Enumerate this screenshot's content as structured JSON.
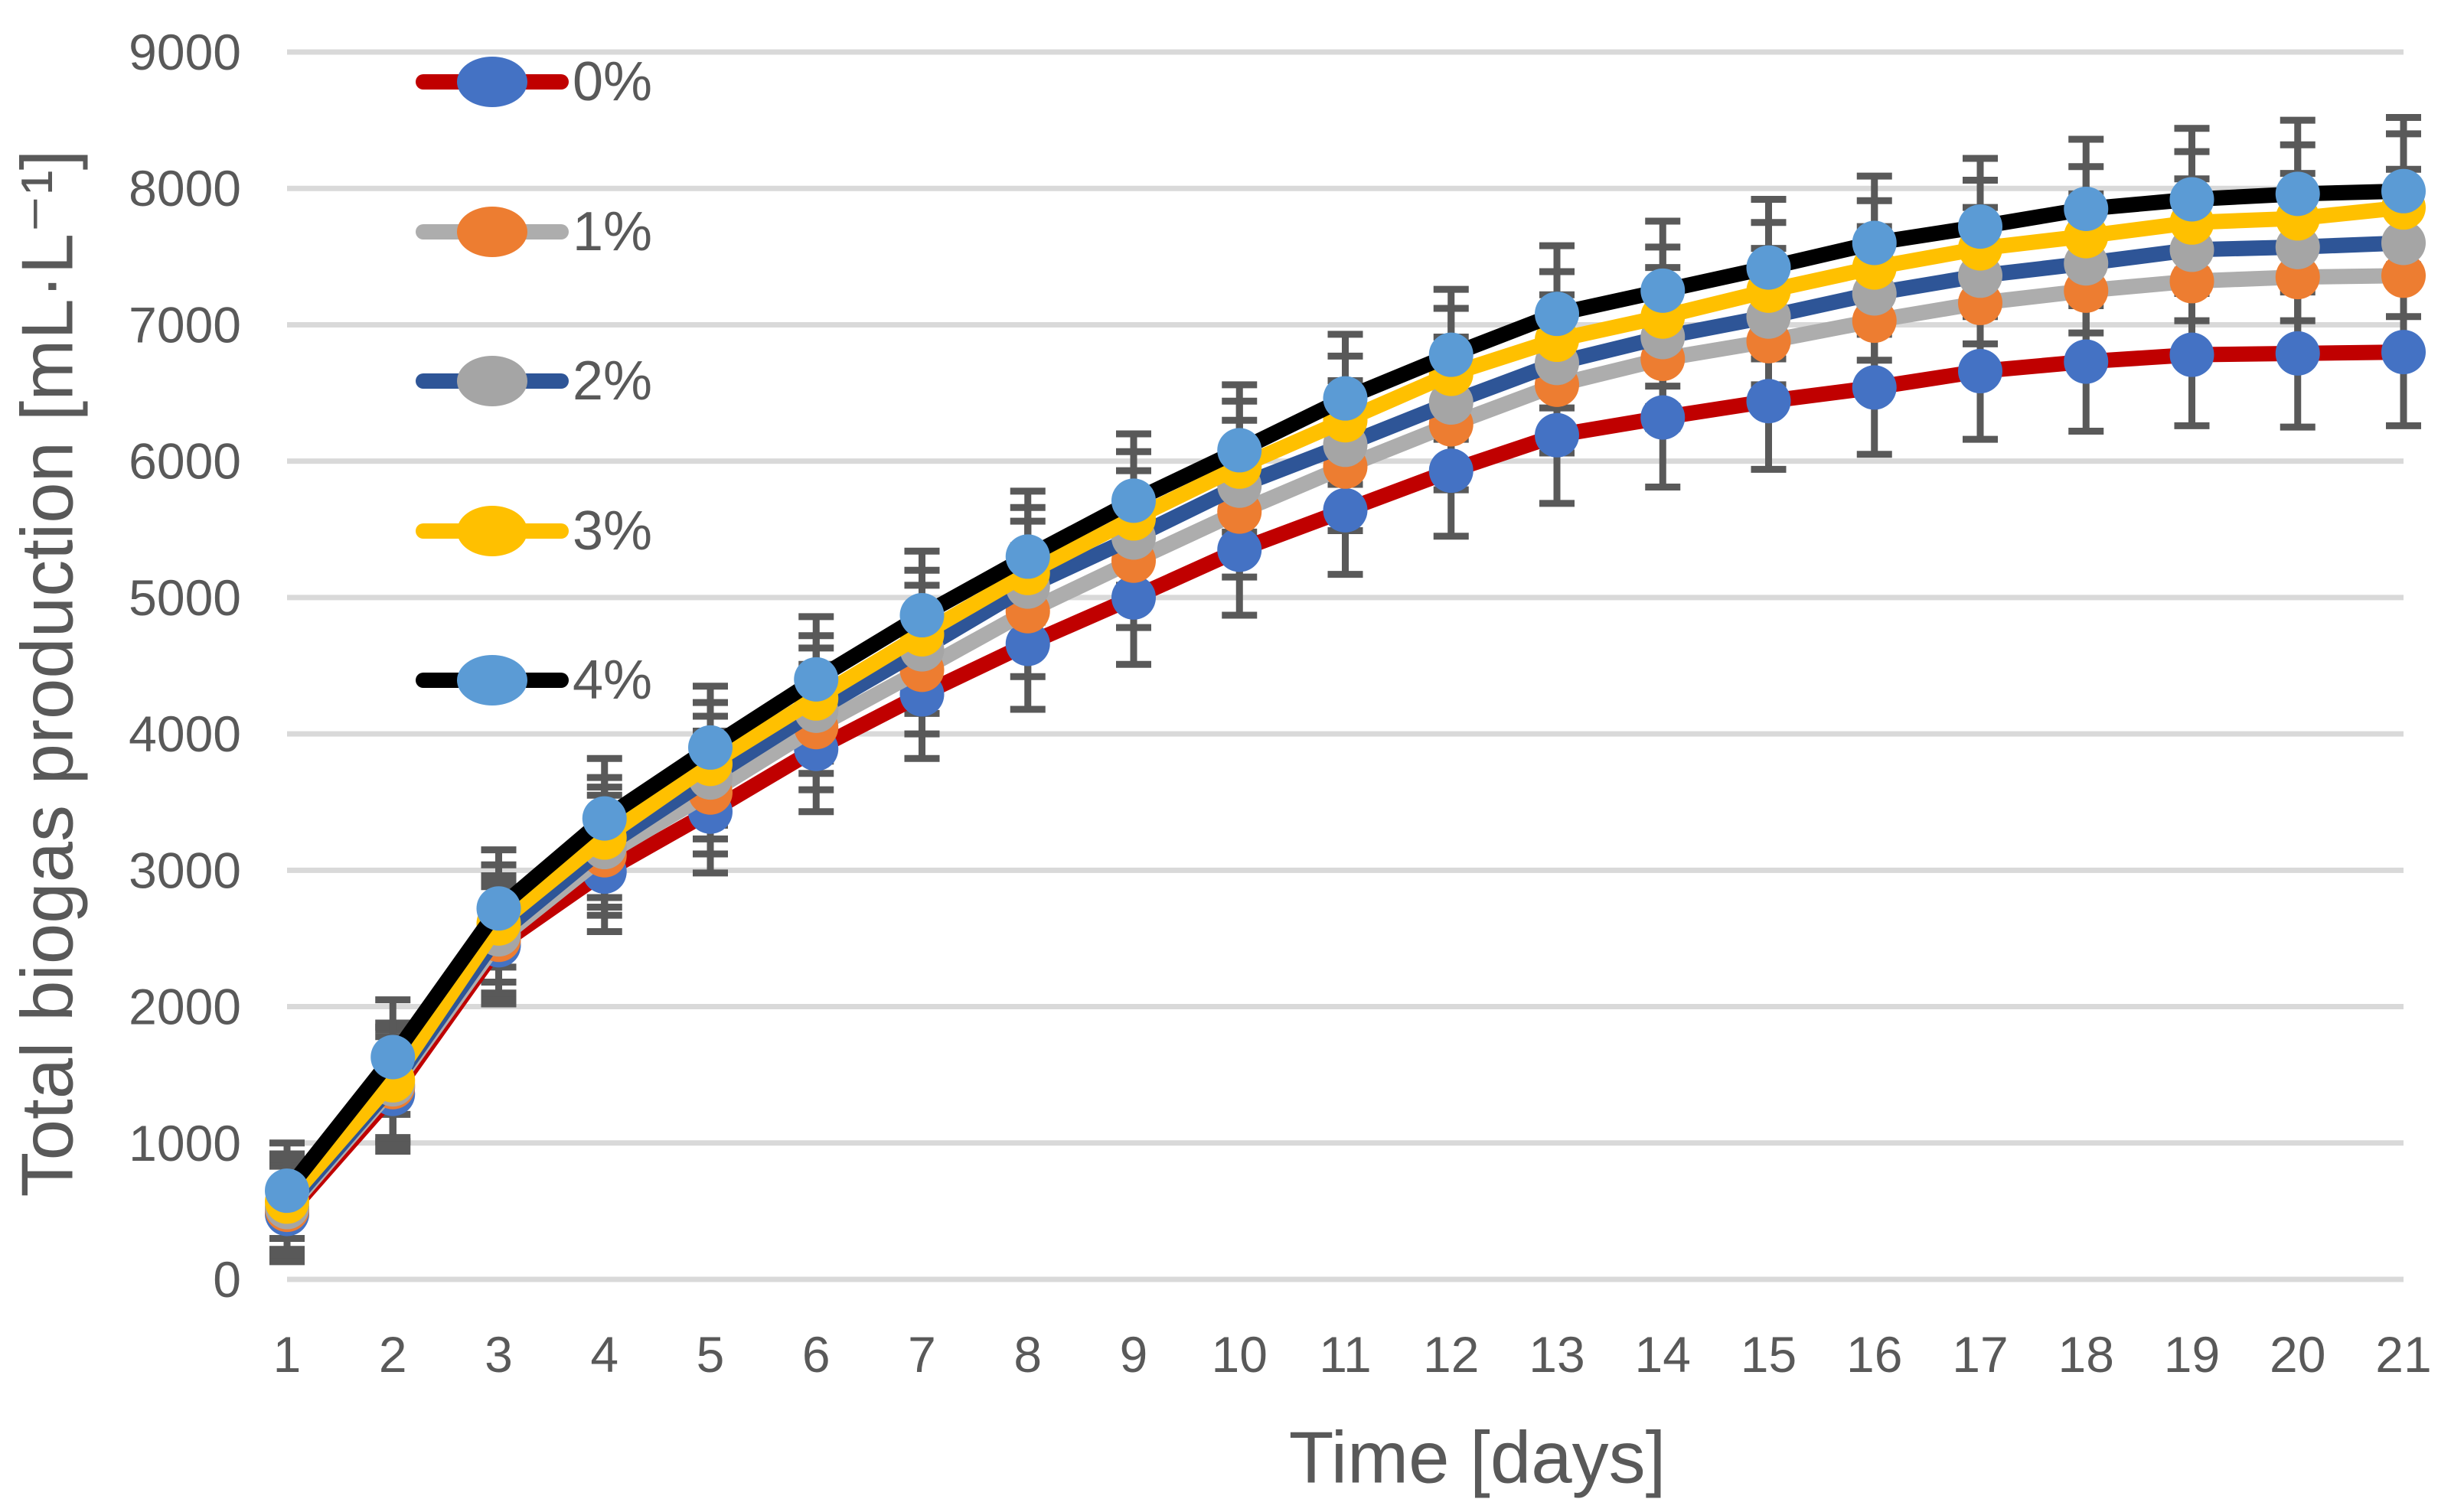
{
  "chart_data": {
    "type": "line",
    "title": "",
    "xlabel": "Time [days]",
    "ylabel": "Total biogas production [mL·L⁻¹]",
    "x": [
      1,
      2,
      3,
      4,
      5,
      6,
      7,
      8,
      9,
      10,
      11,
      12,
      13,
      14,
      15,
      16,
      17,
      18,
      19,
      20,
      21
    ],
    "ylim": [
      0,
      9000
    ],
    "yticks": [
      0,
      1000,
      2000,
      3000,
      4000,
      5000,
      6000,
      7000,
      8000,
      9000
    ],
    "grid": "horizontal",
    "legend_position": "inside-top-left",
    "series": [
      {
        "name": "0%",
        "line_color": "#C00000",
        "marker_color": "#4472C4",
        "values": [
          480,
          1360,
          2450,
          2990,
          3430,
          3890,
          4290,
          4660,
          5000,
          5350,
          5640,
          5930,
          6190,
          6320,
          6440,
          6540,
          6660,
          6730,
          6780,
          6790,
          6800
        ]
      },
      {
        "name": "1%",
        "line_color": "#ADADAD",
        "marker_color": "#ED7D31",
        "values": [
          510,
          1410,
          2490,
          3110,
          3570,
          4050,
          4470,
          4900,
          5270,
          5630,
          5960,
          6270,
          6560,
          6750,
          6880,
          7030,
          7160,
          7250,
          7320,
          7350,
          7360
        ]
      },
      {
        "name": "2%",
        "line_color": "#2E5597",
        "marker_color": "#A5A5A5",
        "values": [
          530,
          1430,
          2530,
          3170,
          3680,
          4170,
          4620,
          5080,
          5440,
          5820,
          6120,
          6430,
          6720,
          6910,
          7060,
          7230,
          7360,
          7450,
          7550,
          7570,
          7600
        ]
      },
      {
        "name": "3%",
        "line_color": "#FFC000",
        "marker_color": "#FFC000",
        "values": [
          570,
          1460,
          2610,
          3240,
          3780,
          4260,
          4730,
          5180,
          5580,
          5960,
          6300,
          6640,
          6890,
          7060,
          7250,
          7420,
          7560,
          7650,
          7750,
          7780,
          7860
        ]
      },
      {
        "name": "4%",
        "line_color": "#000000",
        "marker_color": "#5B9BD5",
        "values": [
          650,
          1630,
          2720,
          3380,
          3900,
          4400,
          4870,
          5300,
          5710,
          6080,
          6460,
          6780,
          7080,
          7250,
          7420,
          7600,
          7720,
          7850,
          7920,
          7960,
          7980
        ]
      }
    ],
    "error_bars_plus_minus": [
      350,
      420,
      430,
      440,
      450,
      460,
      470,
      480,
      490,
      480,
      470,
      480,
      500,
      510,
      500,
      490,
      500,
      510,
      520,
      540,
      540
    ],
    "colors": {
      "gridline": "#D9D9D9",
      "error_bar": "#595959",
      "axis_text": "#595959",
      "background": "#FFFFFF"
    }
  }
}
